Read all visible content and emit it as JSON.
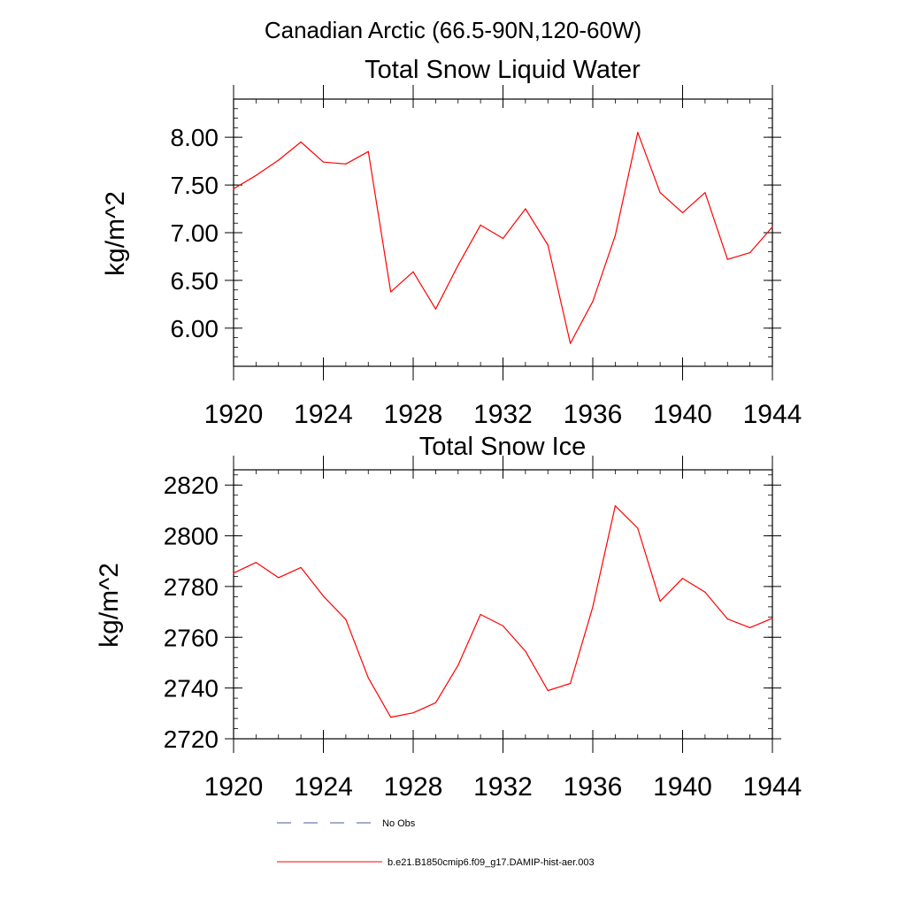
{
  "page_title": "Canadian Arctic (66.5-90N,120-60W)",
  "colors": {
    "model_line": "#ff0000",
    "obs_line": "#4a5a9a",
    "axes": "#000000"
  },
  "legend": {
    "entries": [
      {
        "label": "No Obs",
        "style": "dashed",
        "color": "#4a5a9a"
      },
      {
        "label": "b.e21.B1850cmip6.f09_g17.DAMIP-hist-aer.003",
        "style": "solid",
        "color": "#ff0000"
      }
    ]
  },
  "chart_data": [
    {
      "type": "line",
      "title": "Total Snow Liquid Water",
      "xlabel": "",
      "ylabel": "kg/m^2",
      "xlim": [
        1920,
        1944
      ],
      "ylim": [
        5.6,
        8.4
      ],
      "xticks": [
        1920,
        1924,
        1928,
        1932,
        1936,
        1940,
        1944
      ],
      "xtick_labels": [
        "1920",
        "1924",
        "1928",
        "1932",
        "1936",
        "1940",
        "1944"
      ],
      "yticks": [
        6.0,
        6.5,
        7.0,
        7.5,
        8.0
      ],
      "ytick_labels": [
        "6.00",
        "6.50",
        "7.00",
        "7.50",
        "8.00"
      ],
      "grid": false,
      "series": [
        {
          "name": "b.e21.B1850cmip6.f09_g17.DAMIP-hist-aer.003",
          "color": "#ff0000",
          "x": [
            1920,
            1921,
            1922,
            1923,
            1924,
            1925,
            1926,
            1927,
            1928,
            1929,
            1930,
            1931,
            1932,
            1933,
            1934,
            1935,
            1936,
            1937,
            1938,
            1939,
            1940,
            1941,
            1942,
            1943,
            1944
          ],
          "values": [
            7.46,
            7.6,
            7.76,
            7.95,
            7.74,
            7.72,
            7.85,
            6.38,
            6.59,
            6.2,
            6.66,
            7.08,
            6.94,
            7.25,
            6.87,
            5.84,
            6.28,
            6.97,
            8.05,
            7.42,
            7.21,
            7.42,
            6.72,
            6.79,
            7.06
          ]
        }
      ]
    },
    {
      "type": "line",
      "title": "Total Snow Ice",
      "xlabel": "",
      "ylabel": "kg/m^2",
      "xlim": [
        1920,
        1944
      ],
      "ylim": [
        2720,
        2826
      ],
      "xticks": [
        1920,
        1924,
        1928,
        1932,
        1936,
        1940,
        1944
      ],
      "xtick_labels": [
        "1920",
        "1924",
        "1928",
        "1932",
        "1936",
        "1940",
        "1944"
      ],
      "yticks": [
        2720,
        2740,
        2760,
        2780,
        2800,
        2820
      ],
      "ytick_labels": [
        "2720",
        "2740",
        "2760",
        "2780",
        "2800",
        "2820"
      ],
      "grid": false,
      "series": [
        {
          "name": "b.e21.B1850cmip6.f09_g17.DAMIP-hist-aer.003",
          "color": "#ff0000",
          "x": [
            1920,
            1921,
            1922,
            1923,
            1924,
            1925,
            1926,
            1927,
            1928,
            1929,
            1930,
            1931,
            1932,
            1933,
            1934,
            1935,
            1936,
            1937,
            1938,
            1939,
            1940,
            1941,
            1942,
            1943,
            1944
          ],
          "values": [
            2785.3,
            2789.5,
            2783.5,
            2787.5,
            2776.2,
            2767.0,
            2744.0,
            2728.5,
            2730.2,
            2734.2,
            2749.0,
            2769.0,
            2764.5,
            2754.5,
            2739.0,
            2741.8,
            2772.0,
            2811.8,
            2803.0,
            2774.2,
            2783.2,
            2777.8,
            2767.2,
            2763.8,
            2767.5
          ]
        }
      ]
    }
  ]
}
